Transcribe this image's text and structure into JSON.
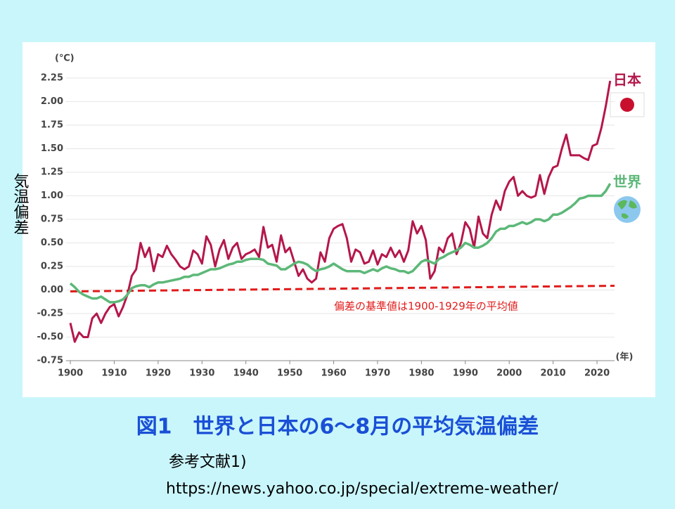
{
  "chart_data": {
    "type": "line",
    "y_unit": "(℃)",
    "x_unit": "(年)",
    "ylabel": "気温偏差",
    "annotation": "偏差の基準値は1900-1929年の平均値",
    "caption": "図1　世界と日本の6～8月の平均気温偏差",
    "reference": "参考文献1)",
    "url": "https://news.yahoo.co.jp/special/extreme-weather/",
    "xlim": [
      1899,
      2024
    ],
    "ylim": [
      -0.75,
      2.25
    ],
    "xticks": [
      1900,
      1910,
      1920,
      1930,
      1940,
      1950,
      1960,
      1970,
      1980,
      1990,
      2000,
      2010,
      2020
    ],
    "yticks": [
      {
        "value": -0.75,
        "label": "-0.75"
      },
      {
        "value": -0.5,
        "label": "-0.50"
      },
      -0.25,
      {
        "value": 0,
        "label": "0.00"
      },
      0.25,
      {
        "value": 0.5,
        "label": "0.50"
      },
      0.75,
      {
        "value": 1,
        "label": "1.00"
      },
      1.25,
      {
        "value": 1.5,
        "label": "1.50"
      },
      1.75,
      {
        "value": 2,
        "label": "2.00"
      },
      2.25
    ],
    "grid": true,
    "x": [
      1900,
      1901,
      1902,
      1903,
      1904,
      1905,
      1906,
      1907,
      1908,
      1909,
      1910,
      1911,
      1912,
      1913,
      1914,
      1915,
      1916,
      1917,
      1918,
      1919,
      1920,
      1921,
      1922,
      1923,
      1924,
      1925,
      1926,
      1927,
      1928,
      1929,
      1930,
      1931,
      1932,
      1933,
      1934,
      1935,
      1936,
      1937,
      1938,
      1939,
      1940,
      1941,
      1942,
      1943,
      1944,
      1945,
      1946,
      1947,
      1948,
      1949,
      1950,
      1951,
      1952,
      1953,
      1954,
      1955,
      1956,
      1957,
      1958,
      1959,
      1960,
      1961,
      1962,
      1963,
      1964,
      1965,
      1966,
      1967,
      1968,
      1969,
      1970,
      1971,
      1972,
      1973,
      1974,
      1975,
      1976,
      1977,
      1978,
      1979,
      1980,
      1981,
      1982,
      1983,
      1984,
      1985,
      1986,
      1987,
      1988,
      1989,
      1990,
      1991,
      1992,
      1993,
      1994,
      1995,
      1996,
      1997,
      1998,
      1999,
      2000,
      2001,
      2002,
      2003,
      2004,
      2005,
      2006,
      2007,
      2008,
      2009,
      2010,
      2011,
      2012,
      2013,
      2014,
      2015,
      2016,
      2017,
      2018,
      2019,
      2020,
      2021,
      2022,
      2023
    ],
    "series": [
      {
        "name": "日本",
        "color": "#b5174a",
        "values": [
          -0.35,
          -0.55,
          -0.45,
          -0.5,
          -0.5,
          -0.3,
          -0.25,
          -0.35,
          -0.25,
          -0.18,
          -0.15,
          -0.28,
          -0.18,
          -0.05,
          0.15,
          0.22,
          0.5,
          0.35,
          0.45,
          0.2,
          0.38,
          0.35,
          0.47,
          0.38,
          0.32,
          0.25,
          0.22,
          0.25,
          0.42,
          0.38,
          0.28,
          0.57,
          0.48,
          0.25,
          0.43,
          0.53,
          0.33,
          0.45,
          0.5,
          0.33,
          0.38,
          0.4,
          0.43,
          0.35,
          0.67,
          0.45,
          0.48,
          0.3,
          0.58,
          0.4,
          0.45,
          0.3,
          0.15,
          0.22,
          0.12,
          0.08,
          0.12,
          0.4,
          0.3,
          0.55,
          0.65,
          0.68,
          0.7,
          0.55,
          0.3,
          0.43,
          0.4,
          0.28,
          0.3,
          0.42,
          0.27,
          0.38,
          0.35,
          0.45,
          0.35,
          0.42,
          0.3,
          0.42,
          0.73,
          0.6,
          0.68,
          0.53,
          0.12,
          0.2,
          0.45,
          0.4,
          0.55,
          0.6,
          0.38,
          0.5,
          0.72,
          0.65,
          0.45,
          0.78,
          0.6,
          0.55,
          0.8,
          0.95,
          0.85,
          1.05,
          1.15,
          1.2,
          1.0,
          1.05,
          1.0,
          0.98,
          1.0,
          1.22,
          1.02,
          1.2,
          1.3,
          1.32,
          1.5,
          1.65,
          1.43,
          1.43,
          1.43,
          1.4,
          1.38,
          1.53,
          1.55,
          1.72,
          1.95,
          2.22
        ]
      },
      {
        "name": "世界",
        "color": "#5cb878",
        "values": [
          0.07,
          0.03,
          -0.02,
          -0.05,
          -0.07,
          -0.09,
          -0.09,
          -0.07,
          -0.1,
          -0.13,
          -0.13,
          -0.12,
          -0.1,
          -0.05,
          0.02,
          0.04,
          0.05,
          0.05,
          0.03,
          0.06,
          0.08,
          0.08,
          0.09,
          0.1,
          0.11,
          0.12,
          0.14,
          0.14,
          0.16,
          0.16,
          0.18,
          0.2,
          0.22,
          0.22,
          0.23,
          0.25,
          0.27,
          0.28,
          0.3,
          0.3,
          0.32,
          0.33,
          0.33,
          0.33,
          0.32,
          0.28,
          0.27,
          0.26,
          0.22,
          0.22,
          0.25,
          0.28,
          0.3,
          0.29,
          0.27,
          0.23,
          0.2,
          0.22,
          0.23,
          0.25,
          0.28,
          0.25,
          0.22,
          0.2,
          0.2,
          0.2,
          0.2,
          0.18,
          0.2,
          0.22,
          0.2,
          0.23,
          0.25,
          0.23,
          0.22,
          0.2,
          0.2,
          0.18,
          0.2,
          0.25,
          0.3,
          0.32,
          0.3,
          0.28,
          0.33,
          0.35,
          0.38,
          0.4,
          0.42,
          0.45,
          0.5,
          0.48,
          0.45,
          0.45,
          0.47,
          0.5,
          0.55,
          0.62,
          0.65,
          0.65,
          0.68,
          0.68,
          0.7,
          0.72,
          0.7,
          0.72,
          0.75,
          0.75,
          0.73,
          0.75,
          0.8,
          0.8,
          0.82,
          0.85,
          0.88,
          0.92,
          0.97,
          0.98,
          1.0,
          1.0,
          1.0,
          1.0,
          1.05,
          1.13
        ]
      }
    ]
  }
}
